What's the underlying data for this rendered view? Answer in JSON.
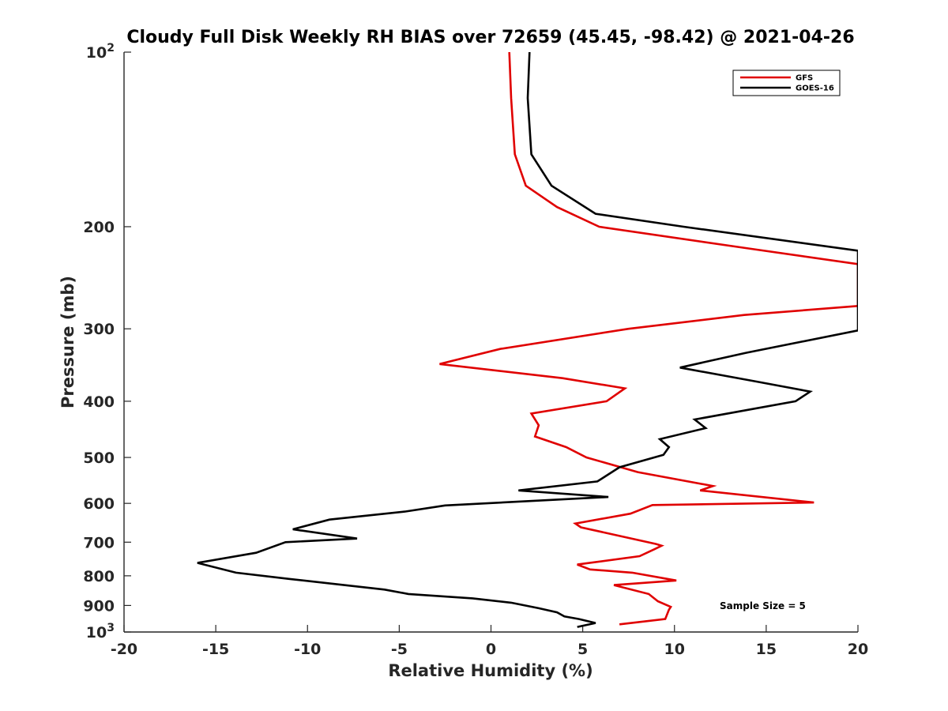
{
  "chart_data": {
    "type": "line",
    "title": "Cloudy Full Disk Weekly RH BIAS over 72659 (45.45, -98.42) @ 2021-04-26",
    "xlabel": "Relative Humidity (%)",
    "ylabel": "Pressure (mb)",
    "xlim": [
      -20,
      20
    ],
    "ylim": [
      100,
      1000
    ],
    "yscale": "log",
    "y_reversed": true,
    "grid": false,
    "legend_position": "top-right",
    "x_ticks": [
      "-20",
      "-15",
      "-10",
      "-5",
      "0",
      "5",
      "10",
      "15",
      "20"
    ],
    "y_ticks": [
      {
        "value": 100,
        "base": "10",
        "exp": "2"
      },
      {
        "value": 200,
        "label": "200"
      },
      {
        "value": 300,
        "label": "300"
      },
      {
        "value": 400,
        "label": "400"
      },
      {
        "value": 500,
        "label": "500"
      },
      {
        "value": 600,
        "label": "600"
      },
      {
        "value": 700,
        "label": "700"
      },
      {
        "value": 800,
        "label": "800"
      },
      {
        "value": 900,
        "label": "900"
      },
      {
        "value": 1000,
        "base": "10",
        "exp": "3"
      }
    ],
    "annotation": "Sample Size = 5",
    "series": [
      {
        "name": "GFS",
        "color": "#e00000",
        "points": [
          [
            1.0,
            100
          ],
          [
            1.1,
            120
          ],
          [
            1.3,
            150
          ],
          [
            1.9,
            170
          ],
          [
            3.6,
            185
          ],
          [
            5.9,
            200
          ],
          [
            14,
            218
          ],
          [
            20,
            232
          ],
          [
            20,
            274
          ],
          [
            13.8,
            284
          ],
          [
            7.5,
            300
          ],
          [
            0.5,
            325
          ],
          [
            -2.8,
            345
          ],
          [
            3.9,
            365
          ],
          [
            7.3,
            380
          ],
          [
            6.3,
            400
          ],
          [
            2.2,
            420
          ],
          [
            2.6,
            440
          ],
          [
            2.4,
            460
          ],
          [
            4.1,
            480
          ],
          [
            5.2,
            500
          ],
          [
            8.0,
            530
          ],
          [
            12.1,
            560
          ],
          [
            11.4,
            570
          ],
          [
            17.6,
            598
          ],
          [
            8.8,
            604
          ],
          [
            7.6,
            625
          ],
          [
            4.6,
            650
          ],
          [
            4.9,
            660
          ],
          [
            9.0,
            705
          ],
          [
            9.3,
            710
          ],
          [
            8.9,
            720
          ],
          [
            8.1,
            740
          ],
          [
            4.7,
            765
          ],
          [
            5.4,
            780
          ],
          [
            7.7,
            790
          ],
          [
            10.1,
            815
          ],
          [
            6.7,
            830
          ],
          [
            8.6,
            860
          ],
          [
            9.1,
            885
          ],
          [
            9.8,
            905
          ],
          [
            9.7,
            915
          ],
          [
            9.5,
            950
          ],
          [
            7.0,
            970
          ]
        ]
      },
      {
        "name": "GOES-16",
        "color": "#000000",
        "points": [
          [
            2.1,
            100
          ],
          [
            2.0,
            120
          ],
          [
            2.2,
            150
          ],
          [
            3.3,
            170
          ],
          [
            5.7,
            190
          ],
          [
            10.5,
            200
          ],
          [
            20,
            220
          ],
          [
            20,
            302
          ],
          [
            13.9,
            330
          ],
          [
            10.3,
            350
          ],
          [
            14.5,
            370
          ],
          [
            17.4,
            385
          ],
          [
            16.6,
            400
          ],
          [
            11.1,
            430
          ],
          [
            11.7,
            445
          ],
          [
            9.2,
            465
          ],
          [
            9.7,
            480
          ],
          [
            9.4,
            495
          ],
          [
            7.0,
            520
          ],
          [
            5.8,
            550
          ],
          [
            1.5,
            570
          ],
          [
            6.4,
            585
          ],
          [
            -2.5,
            605
          ],
          [
            -4.7,
            620
          ],
          [
            -8.8,
            640
          ],
          [
            -10.8,
            665
          ],
          [
            -7.3,
            690
          ],
          [
            -11.2,
            700
          ],
          [
            -12.8,
            730
          ],
          [
            -16.0,
            760
          ],
          [
            -13.9,
            790
          ],
          [
            -11.0,
            810
          ],
          [
            -5.8,
            845
          ],
          [
            -4.5,
            860
          ],
          [
            -1.0,
            875
          ],
          [
            1.1,
            890
          ],
          [
            2.6,
            910
          ],
          [
            3.6,
            925
          ],
          [
            4.0,
            940
          ],
          [
            4.8,
            950
          ],
          [
            5.7,
            965
          ],
          [
            4.7,
            980
          ]
        ]
      }
    ]
  }
}
